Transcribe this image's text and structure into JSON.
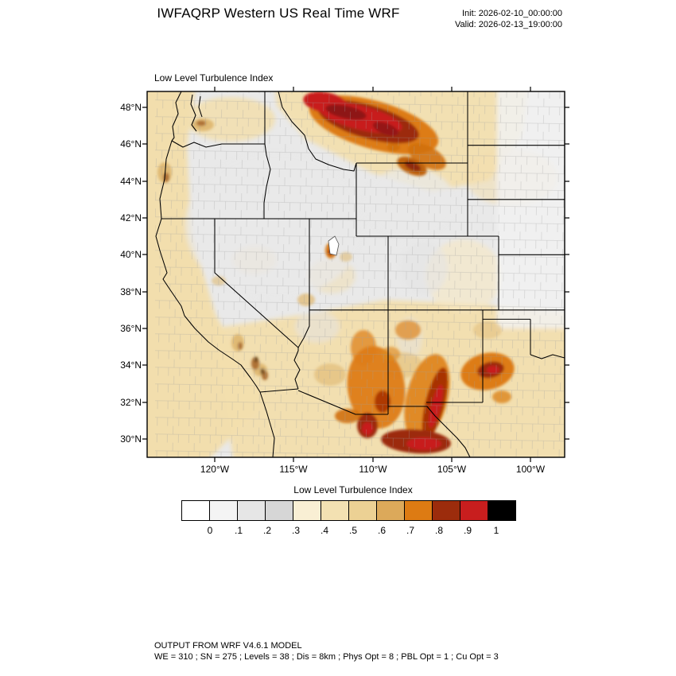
{
  "header": {
    "title": "IWFAQRP Western US Real Time WRF",
    "init": "Init: 2026-02-10_00:00:00",
    "valid": "Valid: 2026-02-13_19:00:00"
  },
  "map": {
    "field_label": "Low Level Turbulence Index",
    "lat_ticks": [
      "48°N",
      "46°N",
      "44°N",
      "42°N",
      "40°N",
      "38°N",
      "36°N",
      "34°N",
      "32°N",
      "30°N"
    ],
    "lon_ticks": [
      "120°W",
      "115°W",
      "110°W",
      "105°W",
      "100°W"
    ]
  },
  "colorbar": {
    "title": "Low Level Turbulence Index",
    "ticks": [
      "0",
      ".1",
      ".2",
      ".3",
      ".4",
      ".5",
      ".6",
      ".7",
      ".8",
      ".9",
      "1"
    ],
    "colors": [
      "#ffffff",
      "#f4f4f4",
      "#e6e6e6",
      "#d6d6d6",
      "#f9efd4",
      "#f3e1b2",
      "#ecd194",
      "#dca95a",
      "#dd7b13",
      "#9c2c0c",
      "#c81e1e",
      "#000000"
    ]
  },
  "footer": {
    "line1": "OUTPUT FROM WRF V4.6.1 MODEL",
    "line2": "WE = 310 ; SN = 275 ; Levels = 38 ; Dis = 8km ; Phys Opt = 8 ; PBL Opt = 1 ; Cu Opt = 3"
  }
}
